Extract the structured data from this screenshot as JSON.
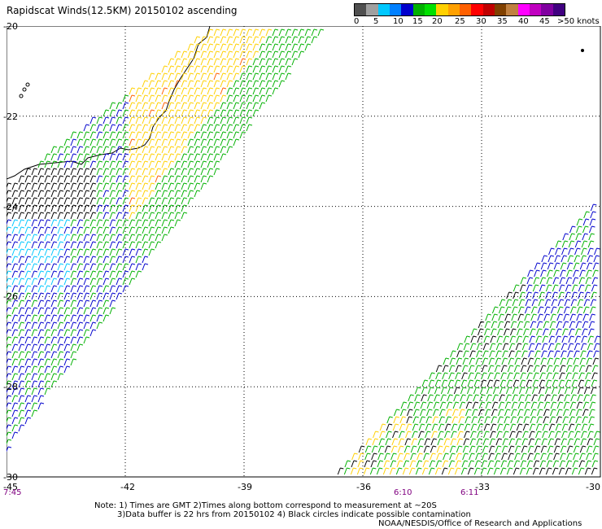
{
  "title": "Rapidscat Winds(12.5KM) 20150102 ascending",
  "colorbar": {
    "colors": [
      "#505050",
      "#a0a0a0",
      "#00c8ff",
      "#0080ff",
      "#0000cc",
      "#00b000",
      "#00e000",
      "#ffd000",
      "#ffa000",
      "#ff6000",
      "#ff0000",
      "#c00000",
      "#804000",
      "#c08040",
      "#ff00ff",
      "#c000c0",
      "#8000a0",
      "#400080"
    ],
    "labels": [
      "0",
      "5",
      "10",
      "15",
      "20",
      "25",
      "30",
      "35",
      "40",
      "45",
      ">50 knots"
    ]
  },
  "axes": {
    "lat_labels": [
      "-20",
      "-22",
      "-24",
      "-26",
      "-28",
      "-30"
    ],
    "lon_labels": [
      "-45",
      "-42",
      "-39",
      "-36",
      "-33",
      "-30"
    ],
    "time_labels": [
      "7:45",
      "6:10",
      "6:11"
    ]
  },
  "notes": {
    "line1": "Note: 1) Times are GMT 2)Times along bottom correspond to measurement at ~20S",
    "line2": "3)Data buffer is 22 hrs from 20150102 4) Black circles indicate possible contamination",
    "credit": "NOAA/NESDIS/Office of Research and Applications"
  },
  "legend_colors": {
    "calm": "#000000",
    "light": "#0000cc",
    "cyan": "#00c8ff",
    "moderate": "#00b000",
    "fresh": "#ffd000",
    "strong": "#ff6000",
    "magenta": "#c000c0"
  }
}
